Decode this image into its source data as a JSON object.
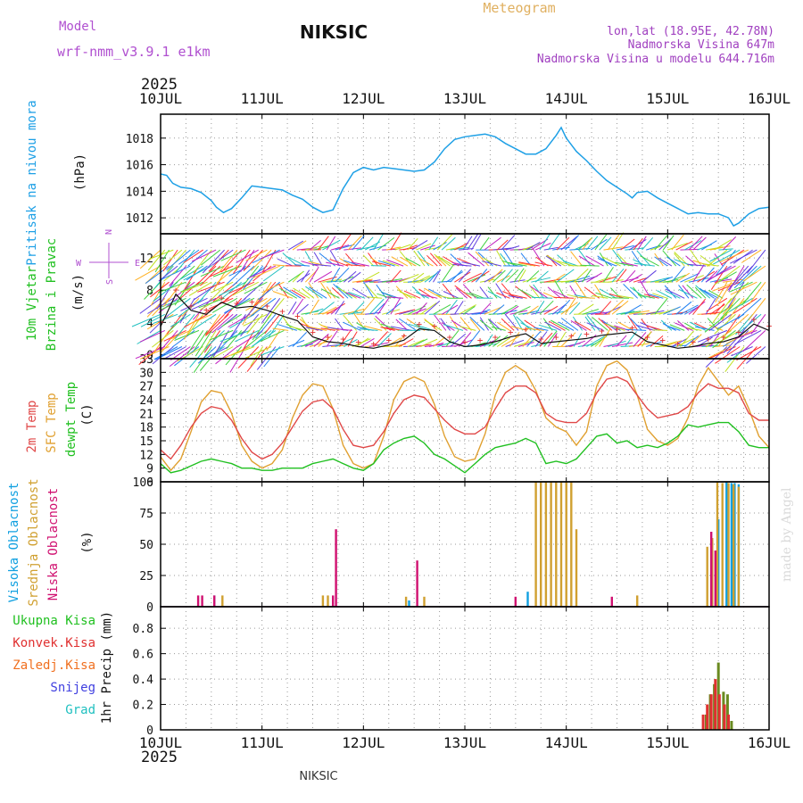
{
  "header": {
    "model_label": "Model",
    "model_name": "wrf-nmm_v3.9.1 e1km",
    "station": "NIKSIC",
    "meteogram": "Meteogram",
    "lonlat": "lon,lat (18.95E, 42.78N)",
    "elevation": "Nadmorska Visina 647m",
    "model_elevation": "Nadmorska Visina u modelu 644.716m",
    "year_top": "2025",
    "year_bottom": "2025",
    "footer_station": "NIKSIC",
    "credit": "made by Angel"
  },
  "colors": {
    "pressure": "#1ea0e6",
    "temp2m": "#e04848",
    "sfc": "#e0a030",
    "dew": "#20c020",
    "high_cloud": "#10a0e0",
    "mid_cloud": "#d0a030",
    "low_cloud": "#d01070",
    "total_precip": "#20c020",
    "conv_precip": "#e03030",
    "frozen_precip": "#f07020",
    "snow": "#4040e0",
    "hail": "#20c0c0",
    "model_purple": "#b050d0",
    "lonlat_purple": "#a040c0"
  },
  "chart_data": [
    {
      "type": "line",
      "id": "pressure",
      "ylabel_line1": "Pritisak na nivou mora",
      "ylabel_unit": "(hPa)",
      "x_ticks": [
        "10JUL",
        "11JUL",
        "12JUL",
        "13JUL",
        "14JUL",
        "15JUL",
        "16JUL"
      ],
      "ylim": [
        1010.8,
        1019.8
      ],
      "y_ticks": [
        1012,
        1014,
        1016,
        1018
      ],
      "x": [
        0,
        0.06,
        0.12,
        0.2,
        0.3,
        0.4,
        0.5,
        0.55,
        0.62,
        0.7,
        0.8,
        0.9,
        1.0,
        1.1,
        1.2,
        1.3,
        1.4,
        1.5,
        1.6,
        1.7,
        1.8,
        1.9,
        2.0,
        2.1,
        2.2,
        2.3,
        2.4,
        2.5,
        2.6,
        2.7,
        2.8,
        2.9,
        3.0,
        3.1,
        3.2,
        3.3,
        3.4,
        3.5,
        3.6,
        3.7,
        3.8,
        3.9,
        3.95,
        4.0,
        4.1,
        4.2,
        4.3,
        4.4,
        4.5,
        4.6,
        4.65,
        4.7,
        4.8,
        4.9,
        5.0,
        5.1,
        5.2,
        5.3,
        5.4,
        5.5,
        5.6,
        5.65,
        5.7,
        5.8,
        5.9,
        6.0
      ],
      "series": [
        {
          "values": [
            1015.3,
            1015.2,
            1014.6,
            1014.3,
            1014.2,
            1013.9,
            1013.3,
            1012.8,
            1012.4,
            1012.7,
            1013.5,
            1014.4,
            1014.3,
            1014.2,
            1014.1,
            1013.7,
            1013.4,
            1012.8,
            1012.4,
            1012.6,
            1014.2,
            1015.4,
            1015.8,
            1015.6,
            1015.8,
            1015.7,
            1015.6,
            1015.5,
            1015.6,
            1016.2,
            1017.2,
            1017.9,
            1018.1,
            1018.2,
            1018.3,
            1018.1,
            1017.6,
            1017.2,
            1016.8,
            1016.8,
            1017.2,
            1018.2,
            1018.8,
            1018.0,
            1017.0,
            1016.3,
            1015.5,
            1014.8,
            1014.3,
            1013.8,
            1013.5,
            1013.9,
            1014.0,
            1013.5,
            1013.1,
            1012.7,
            1012.3,
            1012.4,
            1012.3,
            1012.3,
            1012.0,
            1011.4,
            1011.6,
            1012.3,
            1012.7,
            1012.8
          ]
        }
      ]
    },
    {
      "type": "line",
      "id": "wind",
      "ylabel_line1": "10m Vjetar",
      "ylabel_line2": "Brzina i Pravac",
      "ylabel_unit": "(m/s)",
      "compass": {
        "north": "N",
        "west": "W",
        "east": "E",
        "south": "S"
      },
      "ylim": [
        -0.5,
        15
      ],
      "y_ticks": [
        0,
        4,
        8,
        12
      ],
      "x": [
        0,
        0.15,
        0.3,
        0.45,
        0.6,
        0.75,
        0.9,
        1.05,
        1.2,
        1.35,
        1.5,
        1.65,
        1.8,
        1.95,
        2.1,
        2.25,
        2.4,
        2.55,
        2.7,
        2.85,
        3.0,
        3.15,
        3.3,
        3.45,
        3.6,
        3.75,
        3.9,
        4.05,
        4.2,
        4.35,
        4.5,
        4.65,
        4.8,
        4.95,
        5.1,
        5.25,
        5.4,
        5.55,
        5.7,
        5.85,
        6.0
      ],
      "series": [
        {
          "name": "speed",
          "values": [
            3.5,
            7.5,
            5.5,
            5.0,
            6.5,
            5.8,
            6.0,
            5.5,
            4.8,
            4.2,
            2.2,
            1.6,
            1.4,
            1.0,
            0.8,
            1.2,
            1.8,
            3.2,
            3.0,
            1.6,
            1.0,
            1.2,
            1.6,
            2.2,
            2.6,
            1.4,
            1.6,
            1.8,
            2.0,
            2.4,
            2.6,
            2.8,
            1.6,
            1.2,
            0.8,
            1.0,
            1.4,
            1.6,
            2.2,
            3.8,
            3.0
          ]
        }
      ]
    },
    {
      "type": "line",
      "id": "temperature",
      "ylabel_line1": "2m Temp",
      "ylabel_line2": "SFC Temp",
      "ylabel_line3": "dewpt Temp",
      "ylabel_unit": "(C)",
      "ylim": [
        6,
        33
      ],
      "y_ticks": [
        6,
        9,
        12,
        15,
        18,
        21,
        24,
        27,
        30,
        33
      ],
      "x": [
        0,
        0.1,
        0.2,
        0.3,
        0.4,
        0.5,
        0.6,
        0.7,
        0.8,
        0.9,
        1.0,
        1.1,
        1.2,
        1.3,
        1.4,
        1.5,
        1.6,
        1.7,
        1.8,
        1.9,
        2.0,
        2.1,
        2.2,
        2.3,
        2.4,
        2.5,
        2.6,
        2.7,
        2.8,
        2.9,
        3.0,
        3.1,
        3.2,
        3.3,
        3.4,
        3.5,
        3.6,
        3.7,
        3.8,
        3.9,
        4.0,
        4.1,
        4.2,
        4.3,
        4.4,
        4.5,
        4.6,
        4.7,
        4.8,
        4.9,
        5.0,
        5.1,
        5.2,
        5.3,
        5.4,
        5.5,
        5.6,
        5.7,
        5.8,
        5.9,
        6.0
      ],
      "series": [
        {
          "name": "2m Temp",
          "values": [
            13,
            11,
            14,
            18,
            21,
            22.5,
            22,
            19.5,
            15.5,
            12.5,
            11,
            12,
            14.5,
            18,
            21.5,
            23.5,
            24,
            22,
            17.5,
            14,
            13.5,
            14,
            17,
            21,
            24,
            25,
            24.5,
            22,
            19.5,
            17.5,
            16.5,
            16.5,
            18,
            22,
            25.5,
            27,
            27,
            25.5,
            21,
            19.5,
            19,
            19,
            21,
            25.5,
            28.5,
            29,
            28,
            25,
            22,
            20,
            20.5,
            21,
            22.5,
            25.5,
            27.5,
            26.5,
            26.5,
            25.5,
            21,
            19.5,
            19.5
          ]
        },
        {
          "name": "SFC Temp",
          "values": [
            11.5,
            8.5,
            11,
            17,
            23.5,
            26,
            25.5,
            21,
            14,
            10.5,
            9,
            10,
            13,
            20,
            25,
            27.5,
            27,
            22,
            14,
            10,
            9,
            10,
            16,
            24,
            28,
            29,
            28,
            23,
            16,
            11.5,
            10.5,
            11,
            16.5,
            25,
            30,
            31.5,
            30,
            26,
            20,
            18,
            17,
            14,
            17,
            27,
            31.5,
            32.5,
            30.5,
            25,
            17.5,
            15,
            14,
            15.5,
            20,
            27,
            31,
            28,
            25,
            27,
            22,
            16,
            13.5
          ]
        },
        {
          "name": "dewpt Temp",
          "values": [
            10,
            8,
            8.5,
            9.5,
            10.5,
            11,
            10.5,
            10,
            9,
            9,
            8.5,
            8.5,
            9,
            9,
            9,
            10,
            10.5,
            11,
            10,
            9,
            8.5,
            10,
            13,
            14.5,
            15.5,
            16,
            14.5,
            12,
            11,
            9.5,
            8,
            10,
            12,
            13.5,
            14,
            14.5,
            15.5,
            14.5,
            10,
            10.5,
            10,
            11,
            13.5,
            16,
            16.5,
            14.5,
            15,
            13.5,
            14,
            13.5,
            14.5,
            16,
            18.5,
            18,
            18.5,
            19,
            19,
            17,
            14,
            13.5,
            13.5
          ]
        }
      ]
    },
    {
      "type": "bar",
      "id": "cloud",
      "ylabel_line1": "Visoka Oblacnost",
      "ylabel_line2": "Srednja Oblacnost",
      "ylabel_line3": "Niska Oblacnost",
      "ylabel_unit": "(%)",
      "ylim": [
        0,
        100
      ],
      "y_ticks": [
        0,
        25,
        50,
        75,
        100
      ],
      "series": [
        {
          "name": "Visoka",
          "points": [
            [
              0.53,
              9
            ],
            [
              2.45,
              5
            ],
            [
              3.62,
              12
            ],
            [
              5.5,
              70
            ],
            [
              5.58,
              100
            ],
            [
              5.63,
              99
            ],
            [
              5.66,
              99
            ],
            [
              5.7,
              98
            ]
          ]
        },
        {
          "name": "Srednja",
          "points": [
            [
              0.61,
              9
            ],
            [
              1.6,
              9
            ],
            [
              1.65,
              9
            ],
            [
              2.42,
              8
            ],
            [
              2.6,
              8
            ],
            [
              3.7,
              100
            ],
            [
              3.75,
              100
            ],
            [
              3.8,
              100
            ],
            [
              3.85,
              100
            ],
            [
              3.9,
              100
            ],
            [
              3.95,
              100
            ],
            [
              4.0,
              100
            ],
            [
              4.05,
              100
            ],
            [
              4.1,
              62
            ],
            [
              4.7,
              9
            ],
            [
              5.39,
              48
            ],
            [
              5.44,
              55
            ],
            [
              5.49,
              100
            ],
            [
              5.54,
              99
            ],
            [
              5.6,
              99
            ],
            [
              5.65,
              98
            ],
            [
              5.7,
              96
            ]
          ]
        },
        {
          "name": "Niska",
          "points": [
            [
              0.37,
              9
            ],
            [
              0.41,
              9
            ],
            [
              0.53,
              9
            ],
            [
              1.7,
              9
            ],
            [
              1.73,
              62
            ],
            [
              2.53,
              37
            ],
            [
              3.5,
              8
            ],
            [
              4.45,
              8
            ],
            [
              5.43,
              60
            ],
            [
              5.47,
              45
            ]
          ]
        }
      ]
    },
    {
      "type": "bar",
      "id": "precip",
      "ylabel_line1": "1hr Precip (mm)",
      "legend": [
        "Ukupna Kisa",
        "Konvek.Kisa",
        "Zaledj.Kisa",
        "Snijeg",
        "Grad"
      ],
      "x_ticks": [
        "10JUL",
        "11JUL",
        "12JUL",
        "13JUL",
        "14JUL",
        "15JUL",
        "16JUL"
      ],
      "ylim": [
        0,
        0.97
      ],
      "y_ticks": [
        0,
        0.2,
        0.4,
        0.6,
        0.8
      ],
      "series": [
        {
          "name": "Ukupna Kisa",
          "points": [
            [
              5.38,
              0.12
            ],
            [
              5.42,
              0.28
            ],
            [
              5.46,
              0.36
            ],
            [
              5.5,
              0.53
            ],
            [
              5.55,
              0.3
            ],
            [
              5.59,
              0.28
            ],
            [
              5.63,
              0.07
            ]
          ]
        },
        {
          "name": "Konvek.Kisa",
          "points": [
            [
              5.35,
              0.12
            ],
            [
              5.39,
              0.2
            ],
            [
              5.43,
              0.28
            ],
            [
              5.47,
              0.4
            ],
            [
              5.51,
              0.28
            ],
            [
              5.56,
              0.2
            ],
            [
              5.6,
              0.12
            ]
          ]
        }
      ]
    }
  ]
}
